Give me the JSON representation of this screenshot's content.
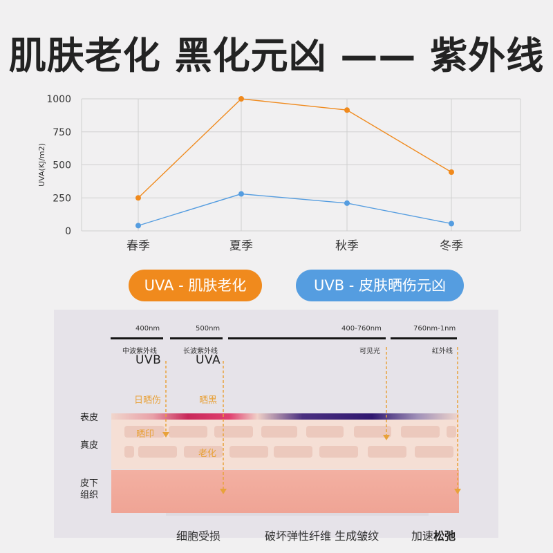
{
  "title": "肌肤老化 黑化元凶 —— 紫外线",
  "chart_data": {
    "type": "line",
    "categories": [
      "春季",
      "夏季",
      "秋季",
      "冬季"
    ],
    "ylabel": "UVA(KJ/m2)",
    "ylim": [
      0,
      1000
    ],
    "yticks": [
      "0",
      "250",
      "500",
      "750",
      "1000"
    ],
    "grid": true,
    "series": [
      {
        "values": [
          250,
          1000,
          915,
          445
        ],
        "color": "#f08a1d"
      },
      {
        "values": [
          40,
          280,
          210,
          55
        ],
        "color": "#559de0"
      }
    ]
  },
  "legend": {
    "uva": "UVA - 肌肤老化",
    "uvb": "UVB - 皮肤晒伤元凶"
  },
  "diagram": {
    "wavelengths": [
      "400nm",
      "500nm",
      "400-760nm",
      "760nm-1nm"
    ],
    "ray_names": [
      "中波紫外线",
      "长波紫外线",
      "可见光",
      "红外线"
    ],
    "ray_codes": [
      "UVB",
      "UVA"
    ],
    "effects": [
      "日晒伤",
      "晒黑",
      "晒印",
      "老化"
    ],
    "layers": [
      "表皮",
      "真皮",
      "皮下",
      "组织"
    ],
    "bottom": {
      "left": "细胞受损",
      "middle": "破坏弹性纤维 生成皱纹",
      "right_prefix": "加速",
      "right_bold": "松弛"
    },
    "colors": {
      "arrow": "#e8a23a",
      "dermis": "#f5dfd5",
      "subcutis": "#f1a99b"
    }
  }
}
